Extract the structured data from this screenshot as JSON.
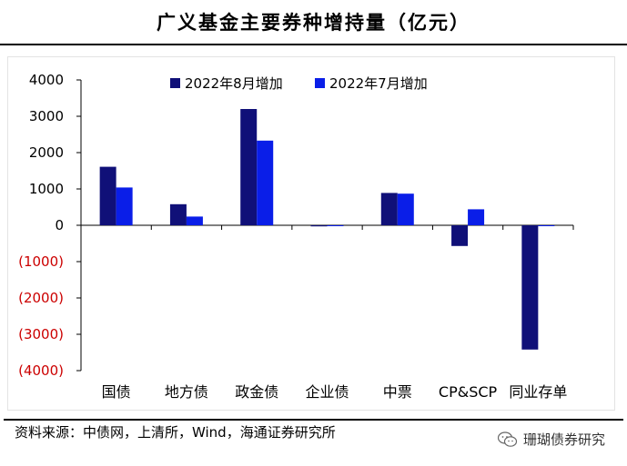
{
  "title": "广义基金主要券种增持量（亿元）",
  "source": "资料来源：中债网，上清所，Wind，海通证券研究所",
  "brand": {
    "name": "珊瑚债券研究",
    "icon": "wechat-icon"
  },
  "colors": {
    "aug": "#101078",
    "jul": "#0a1ee8",
    "negative_tick": "#cc0000",
    "axis": "#000000"
  },
  "chart_data": {
    "type": "bar",
    "title": "广义基金主要券种增持量（亿元）",
    "categories": [
      "国债",
      "地方债",
      "政金债",
      "企业债",
      "中票",
      "CP&SCP",
      "同业存单"
    ],
    "series": [
      {
        "name": "2022年8月增加",
        "values": [
          1610,
          580,
          3200,
          -30,
          890,
          -570,
          -3420
        ]
      },
      {
        "name": "2022年7月增加",
        "values": [
          1040,
          240,
          2330,
          -10,
          870,
          440,
          -20
        ]
      }
    ],
    "ylim": [
      -4000,
      4000
    ],
    "yticks": [
      4000,
      3000,
      2000,
      1000,
      0,
      -1000,
      -2000,
      -3000,
      -4000
    ],
    "ytick_labels": [
      "4000",
      "3000",
      "2000",
      "1000",
      "0",
      "(1000)",
      "(2000)",
      "(3000)",
      "(4000)"
    ],
    "legend_position": "top",
    "xlabel": "",
    "ylabel": ""
  }
}
